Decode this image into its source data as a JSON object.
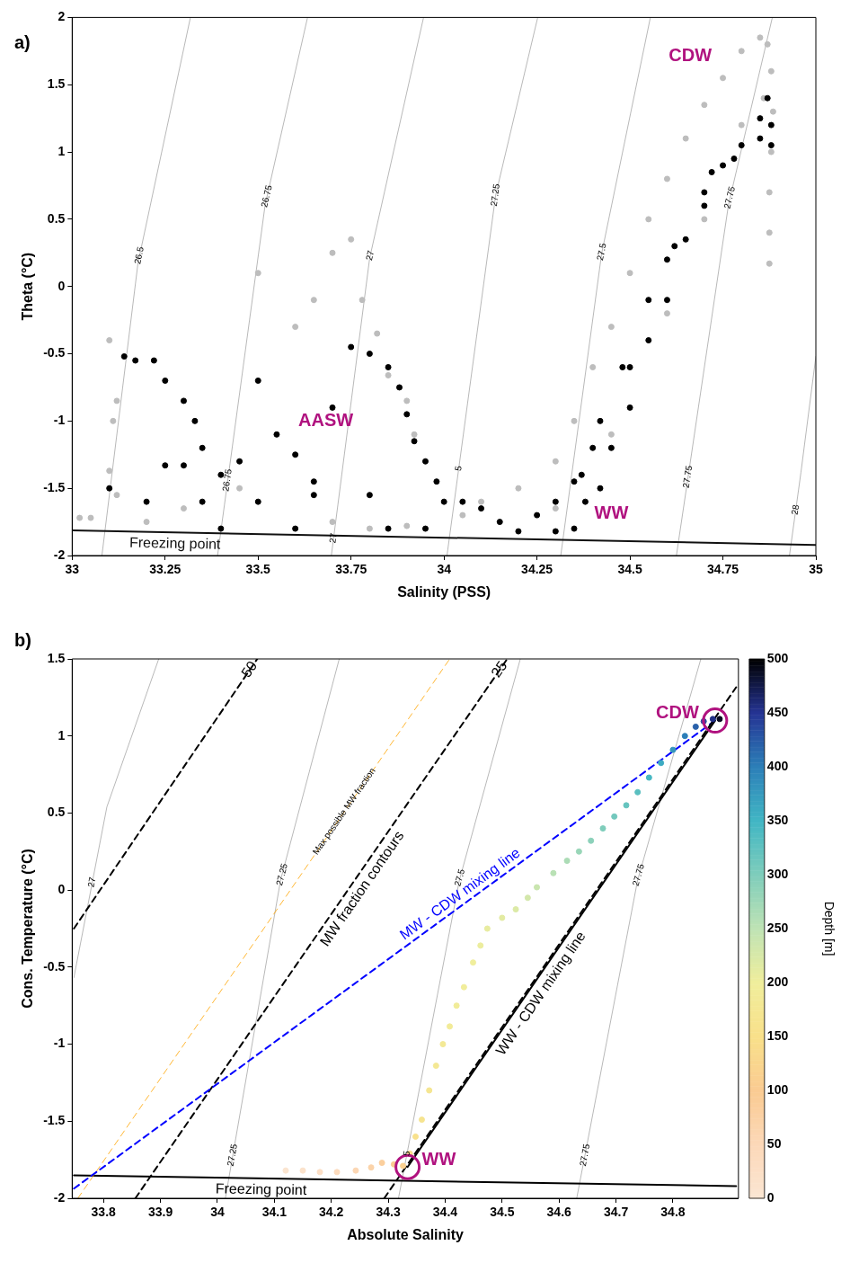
{
  "chart_data": [
    {
      "type": "scatter",
      "xlabel": "Salinity (PSS)",
      "ylabel": "Theta (°C)",
      "xlim": [
        33,
        35
      ],
      "ylim": [
        -2,
        2
      ],
      "xticks": [
        33,
        33.25,
        33.5,
        33.75,
        34,
        34.25,
        34.5,
        34.75,
        35
      ],
      "yticks": [
        -2,
        -1.5,
        -1,
        -0.5,
        0,
        0.5,
        1,
        1.5,
        2
      ],
      "series": [
        {
          "type": "line",
          "color": "#a6a6a6",
          "x": [
            33.08,
            33.177,
            33.318
          ],
          "values": [
            -2,
            0.174,
            2
          ]
        },
        {
          "type": "line",
          "color": "#a6a6a6",
          "x": [
            33.391,
            33.519,
            33.633
          ],
          "values": [
            -2,
            0.607,
            2
          ]
        },
        {
          "type": "line",
          "color": "#a6a6a6",
          "x": [
            33.697,
            33.8,
            33.945
          ],
          "values": [
            -2,
            0.21,
            2
          ]
        },
        {
          "type": "line",
          "color": "#a6a6a6",
          "x": [
            34.008,
            34.139,
            34.252
          ],
          "values": [
            -2,
            0.68,
            2
          ]
        },
        {
          "type": "line",
          "color": "#a6a6a6",
          "x": [
            34.314,
            34.424,
            34.555
          ],
          "values": [
            -2,
            0.246,
            2
          ]
        },
        {
          "type": "line",
          "color": "#a6a6a6",
          "x": [
            34.625,
            34.765,
            34.883
          ],
          "values": [
            -2,
            0.607,
            2
          ]
        },
        {
          "type": "line",
          "color": "#a6a6a6",
          "x": [
            34.929,
            34.96,
            35
          ],
          "values": [
            -2,
            -1.38,
            -0.52
          ]
        },
        {
          "color": "#bdbdbd",
          "x": [
            33.02,
            33.05,
            33.1,
            33.12,
            33.11,
            33.1,
            33.12,
            33.2,
            33.3,
            33.45,
            33.5,
            33.6,
            33.65,
            33.7,
            33.75,
            33.78,
            33.82,
            33.85,
            33.9,
            33.92,
            33.7,
            33.8,
            33.9,
            34.05,
            34.1,
            34.2,
            34.3,
            34.35,
            34.4,
            34.45,
            34.5,
            34.55,
            34.6,
            34.65,
            34.7,
            34.75,
            34.8,
            34.85,
            34.87,
            34.88,
            34.885,
            34.88,
            34.875,
            34.875,
            34.875,
            34.3,
            34.45,
            34.6,
            34.7,
            34.8,
            34.86
          ],
          "values": [
            -1.72,
            -1.72,
            -0.4,
            -0.85,
            -1,
            -1.37,
            -1.55,
            -1.75,
            -1.65,
            -1.5,
            0.1,
            -0.3,
            -0.1,
            0.25,
            0.35,
            -0.1,
            -0.35,
            -0.66,
            -0.85,
            -1.1,
            -1.75,
            -1.8,
            -1.78,
            -1.7,
            -1.6,
            -1.5,
            -1.3,
            -1,
            -0.6,
            -0.3,
            0.1,
            0.5,
            0.8,
            1.1,
            1.35,
            1.55,
            1.75,
            1.85,
            1.8,
            1.6,
            1.3,
            1,
            0.7,
            0.4,
            0.17,
            -1.65,
            -1.1,
            -0.2,
            0.5,
            1.2,
            1.4
          ]
        },
        {
          "color": "#000000",
          "x": [
            33.14,
            33.17,
            33.22,
            33.25,
            33.3,
            33.33,
            33.35,
            33.4,
            33.45,
            33.5,
            33.55,
            33.6,
            33.65,
            33.7,
            33.75,
            33.8,
            33.85,
            33.88,
            33.9,
            33.92,
            33.95,
            33.98,
            33.1,
            33.25,
            33.3,
            33.2,
            33.35,
            33.5,
            33.65,
            33.8,
            33.4,
            33.6,
            33.85,
            33.95,
            34,
            34.05,
            34.1,
            34.15,
            34.2,
            34.3,
            34.25,
            34.3,
            34.35,
            34.4,
            34.35,
            34.38,
            34.42,
            34.45,
            34.5,
            34.5,
            34.55,
            34.6,
            34.6,
            34.65,
            34.7,
            34.72,
            34.75,
            34.8,
            34.85,
            34.87,
            34.88,
            34.88,
            34.85,
            34.78,
            34.7,
            34.62,
            34.55,
            34.48,
            34.42,
            34.37
          ],
          "values": [
            -0.52,
            -0.55,
            -0.55,
            -0.7,
            -0.85,
            -1,
            -1.2,
            -1.4,
            -1.3,
            -0.7,
            -1.1,
            -1.25,
            -1.45,
            -0.9,
            -0.45,
            -0.5,
            -0.6,
            -0.75,
            -0.95,
            -1.15,
            -1.3,
            -1.45,
            -1.5,
            -1.33,
            -1.33,
            -1.6,
            -1.6,
            -1.6,
            -1.55,
            -1.55,
            -1.8,
            -1.8,
            -1.8,
            -1.8,
            -1.6,
            -1.6,
            -1.65,
            -1.75,
            -1.82,
            -1.82,
            -1.7,
            -1.6,
            -1.45,
            -1.2,
            -1.8,
            -1.6,
            -1.5,
            -1.2,
            -0.9,
            -0.6,
            -0.4,
            -0.1,
            0.2,
            0.35,
            0.6,
            0.85,
            0.9,
            1.05,
            1.25,
            1.4,
            1.2,
            1.05,
            1.1,
            0.95,
            0.7,
            0.3,
            -0.1,
            -0.6,
            -1,
            -1.4
          ]
        },
        {
          "type": "line",
          "color": "#111111",
          "x": [
            33,
            35
          ],
          "values": [
            -1.813,
            -1.921
          ]
        }
      ],
      "annotations": [
        "a)",
        "CDW",
        "AASW",
        "WW",
        {
          "text": "26.5",
          "x": 33.181,
          "y": 0.23
        },
        {
          "text": "26.75",
          "x": 33.524,
          "y": 0.67
        },
        {
          "text": "26.75",
          "x": 33.418,
          "y": -1.44
        },
        {
          "text": "27",
          "x": 33.802,
          "y": 0.23
        },
        {
          "text": "27",
          "x": 33.703,
          "y": -1.87
        },
        {
          "text": "27.25",
          "x": 34.139,
          "y": 0.68
        },
        {
          "text": "27.5",
          "x": 34.425,
          "y": 0.257
        },
        {
          "text": "5",
          "x": 34.04,
          "y": -1.353
        },
        {
          "text": "27.75",
          "x": 34.769,
          "y": 0.66
        },
        {
          "text": "27.75",
          "x": 34.656,
          "y": -1.415
        },
        {
          "text": "28",
          "x": 34.946,
          "y": -1.66
        },
        {
          "text": "Freezing point",
          "x": 33.277,
          "y": -1.828
        }
      ]
    },
    {
      "type": "scatter",
      "xlabel": "Absolute Salinity",
      "ylabel": "Cons. Temperature (°C)",
      "clabel": "Depth [m]",
      "xlim": [
        33.745,
        34.915
      ],
      "ylim": [
        -2,
        1.5
      ],
      "xticks": [
        33.8,
        33.9,
        34,
        34.1,
        34.2,
        34.3,
        34.4,
        34.5,
        34.6,
        34.7,
        34.8
      ],
      "yticks": [
        -2,
        -1.5,
        -1,
        -0.5,
        0,
        0.5,
        1,
        1.5
      ],
      "clim": [
        0,
        500
      ],
      "cticks": [
        0,
        50,
        100,
        150,
        200,
        250,
        300,
        350,
        400,
        450,
        500
      ],
      "series": [
        {
          "type": "line",
          "color": "#a6a6a6",
          "x": [
            33.748,
            33.806,
            33.897
          ],
          "values": [
            -0.568,
            0.54,
            1.5
          ]
        },
        {
          "type": "line",
          "color": "#a6a6a6",
          "x": [
            34.014,
            34.111,
            34.214
          ],
          "values": [
            -2,
            0.065,
            1.5
          ]
        },
        {
          "type": "line",
          "color": "#a6a6a6",
          "x": [
            34.318,
            34.425,
            34.532
          ],
          "values": [
            -2,
            0.065,
            1.5
          ]
        },
        {
          "type": "line",
          "color": "#a6a6a6",
          "x": [
            34.631,
            34.738,
            34.849
          ],
          "values": [
            -2,
            0.065,
            1.5
          ]
        },
        {
          "type": "line",
          "color": "#000000",
          "x": [
            33.748,
            34.911
          ],
          "values": [
            -1.851,
            -1.921
          ]
        },
        {
          "type": "line",
          "color": "#000000",
          "line_style": "dashed",
          "x": [
            33.748,
            34.07
          ],
          "values": [
            -0.25,
            1.5
          ]
        },
        {
          "type": "line",
          "color": "#000000",
          "line_style": "dashed",
          "x": [
            33.856,
            34.509
          ],
          "values": [
            -2,
            1.5
          ]
        },
        {
          "type": "line",
          "color": "#ffa500",
          "line_style": "dashed",
          "x": [
            33.755,
            34.408
          ],
          "values": [
            -2,
            1.5
          ]
        },
        {
          "type": "line",
          "color": "#0000ff",
          "line_style": "dashed",
          "x": [
            33.748,
            34.874
          ],
          "values": [
            -1.937,
            1.1
          ]
        },
        {
          "type": "line",
          "color": "#000000",
          "line_style": "dashed",
          "x": [
            34.293,
            34.911
          ],
          "values": [
            -2,
            1.316
          ]
        },
        {
          "type": "line",
          "color": "#000000",
          "x": [
            34.334,
            34.874
          ],
          "values": [
            -1.797,
            1.1
          ]
        },
        {
          "x": [
            34.12,
            34.15,
            34.18,
            34.21,
            34.243,
            34.27,
            34.289,
            34.31,
            34.326,
            34.338,
            34.348,
            34.359,
            34.372,
            34.384,
            34.396,
            34.408,
            34.42,
            34.433,
            34.449,
            34.462,
            34.474,
            34.5,
            34.524,
            34.545,
            34.561,
            34.59,
            34.614,
            34.635,
            34.656,
            34.677,
            34.697,
            34.718,
            34.738,
            34.758,
            34.779,
            34.8,
            34.821,
            34.84,
            34.854,
            34.87,
            34.882
          ],
          "values": [
            -1.82,
            -1.82,
            -1.83,
            -1.83,
            -1.82,
            -1.8,
            -1.77,
            -1.78,
            -1.79,
            -1.71,
            -1.6,
            -1.49,
            -1.3,
            -1.14,
            -1.0,
            -0.885,
            -0.75,
            -0.63,
            -0.47,
            -0.36,
            -0.25,
            -0.18,
            -0.125,
            -0.05,
            0.018,
            0.11,
            0.19,
            0.25,
            0.32,
            0.4,
            0.477,
            0.55,
            0.635,
            0.73,
            0.825,
            0.91,
            1,
            1.06,
            1.095,
            1.11,
            1.11
          ],
          "colors": [
            "#fbe5d0",
            "#fbe2cb",
            "#fcdfc6",
            "#fcdbbd",
            "#fcd7b4",
            "#fbd3a9",
            "#fbcf9d",
            "#facb92",
            "#fad190",
            "#f9dc8c",
            "#f8e18c",
            "#f6e48f",
            "#f5e692",
            "#f4e894",
            "#f3e996",
            "#f2eb98",
            "#f1ec99",
            "#f1ed9b",
            "#f0ee9c",
            "#eced9e",
            "#e8eca0",
            "#e3eba2",
            "#dceaa6",
            "#d3e7aa",
            "#c9e5af",
            "#b9e1b5",
            "#acdcb6",
            "#99d6b8",
            "#8cd1ba",
            "#7fcdbb",
            "#73c8bd",
            "#66c4bf",
            "#5abfc0",
            "#47b8c3",
            "#3dabc2",
            "#3495bd",
            "#2c7fb8",
            "#2961aa",
            "#274b9f",
            "#212f85",
            "#070a1e"
          ],
          "cvalues": [
            5,
            15,
            25,
            40,
            55,
            70,
            85,
            100,
            115,
            140,
            155,
            165,
            172,
            178,
            183,
            188,
            192,
            196,
            200,
            204,
            208,
            213,
            220,
            230,
            240,
            255,
            265,
            280,
            290,
            300,
            310,
            320,
            330,
            345,
            360,
            380,
            400,
            420,
            435,
            455,
            490
          ]
        },
        {
          "color": "#b0127f",
          "marker": "circle",
          "x": [
            34.874,
            34.334
          ],
          "values": [
            1.1,
            -1.797
          ]
        }
      ],
      "annotations": [
        "b)",
        {
          "text": "27",
          "x": 33.78,
          "y": 0.05
        },
        {
          "text": "27.25",
          "x": 34.114,
          "y": 0.1
        },
        {
          "text": "27.25",
          "x": 34.027,
          "y": -1.72
        },
        {
          "text": "27.5",
          "x": 34.426,
          "y": 0.08
        },
        {
          "text": "5",
          "x": 34.333,
          "y": -1.71
        },
        {
          "text": "27.75",
          "x": 34.74,
          "y": 0.097
        },
        {
          "text": "27.75",
          "x": 34.646,
          "y": -1.72
        },
        {
          "text": "50",
          "x": 34.057,
          "y": 1.43
        },
        {
          "text": "25",
          "x": 34.496,
          "y": 1.43
        },
        {
          "text": "Max possible MW fraction",
          "x": 34.223,
          "y": 0.51
        },
        {
          "text": "MW fraction contours",
          "x": 34.238,
          "y": 0.05
        },
        {
          "text": "MW - CDW mixing line",
          "x": 34.437,
          "y": -0.08
        },
        {
          "text": "WW - CDW mixing line",
          "x": 34.552,
          "y": -0.63
        },
        {
          "text": "Freezing point",
          "x": 34.077,
          "y": -1.871
        },
        {
          "text": "CDW",
          "x": 34.874,
          "y": 1.1
        },
        {
          "text": "WW",
          "x": 34.334,
          "y": -1.797
        }
      ]
    }
  ]
}
